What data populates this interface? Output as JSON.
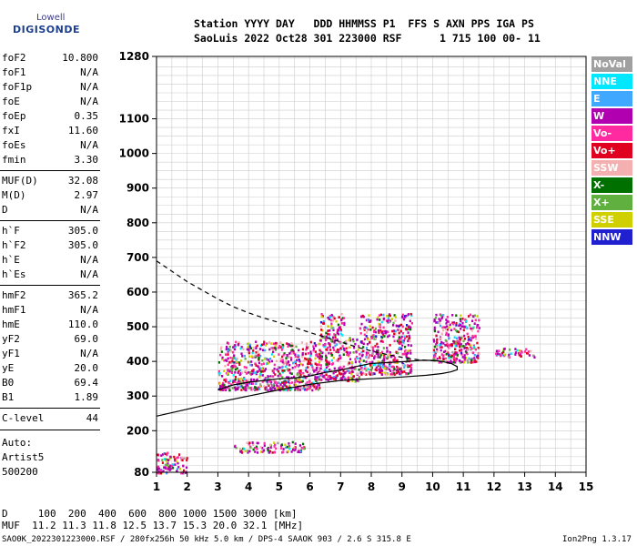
{
  "logo": {
    "line1": "Lowell",
    "line2": "DIGISONDE"
  },
  "header": {
    "line1": "Station YYYY DAY   DDD HHMMSS P1  FFS S AXN PPS IGA PS",
    "line2": "SaoLuis 2022 Oct28 301 223000 RSF      1 715 100 00- 11"
  },
  "params": [
    {
      "name": "foF2",
      "value": "10.800"
    },
    {
      "name": "foF1",
      "value": "N/A"
    },
    {
      "name": "foF1p",
      "value": "N/A"
    },
    {
      "name": "foE",
      "value": "N/A"
    },
    {
      "name": "foEp",
      "value": "0.35"
    },
    {
      "name": "fxI",
      "value": "11.60"
    },
    {
      "name": "foEs",
      "value": "N/A"
    },
    {
      "name": "fmin",
      "value": "3.30"
    },
    {
      "name": "MUF(D)",
      "value": "32.08"
    },
    {
      "name": "M(D)",
      "value": "2.97"
    },
    {
      "name": "D",
      "value": "N/A"
    },
    {
      "name": "h`F",
      "value": "305.0"
    },
    {
      "name": "h`F2",
      "value": "305.0"
    },
    {
      "name": "h`E",
      "value": "N/A"
    },
    {
      "name": "h`Es",
      "value": "N/A"
    },
    {
      "name": "hmF2",
      "value": "365.2"
    },
    {
      "name": "hmF1",
      "value": "N/A"
    },
    {
      "name": "hmE",
      "value": "110.0"
    },
    {
      "name": "yF2",
      "value": "69.0"
    },
    {
      "name": "yF1",
      "value": "N/A"
    },
    {
      "name": "yE",
      "value": "20.0"
    },
    {
      "name": "B0",
      "value": "69.4"
    },
    {
      "name": "B1",
      "value": "1.89"
    },
    {
      "name": "C-level",
      "value": "44"
    }
  ],
  "autoscale": {
    "label": "Auto:",
    "program": "Artist5",
    "version": "500200"
  },
  "legend": [
    {
      "label": "NoVal",
      "color": "#a0a0a0"
    },
    {
      "label": "NNE",
      "color": "#00e8ff"
    },
    {
      "label": "E",
      "color": "#40a8ff"
    },
    {
      "label": "W",
      "color": "#b000b0"
    },
    {
      "label": "Vo-",
      "color": "#ff2aa0"
    },
    {
      "label": "Vo+",
      "color": "#e00020"
    },
    {
      "label": "SSW",
      "color": "#f4b0b0"
    },
    {
      "label": "X-",
      "color": "#007000"
    },
    {
      "label": "X+",
      "color": "#60b040"
    },
    {
      "label": "SSE",
      "color": "#d0d000"
    },
    {
      "label": "NNW",
      "color": "#2020d0"
    }
  ],
  "footer": {
    "d_row": "D     100  200  400  600  800 1000 1500 3000 [km]",
    "muf_row": "MUF  11.2 11.3 11.8 12.5 13.7 15.3 20.0 32.1 [MHz]",
    "file_info": "SAO0K_2022301223000.RSF / 280fx256h 50 kHz 5.0 km / DPS-4 SAAOK 903 / 2.6 S 315.8 E",
    "version": "Ion2Png 1.3.17"
  },
  "chart_data": {
    "type": "scatter",
    "xlabel": "",
    "ylabel": "",
    "xlim": [
      1,
      15
    ],
    "ylim": [
      80,
      1280
    ],
    "x_ticks": [
      1,
      2,
      3,
      4,
      5,
      6,
      7,
      8,
      9,
      10,
      11,
      12,
      13,
      14,
      15
    ],
    "y_ticks": [
      80,
      200,
      300,
      400,
      500,
      600,
      700,
      800,
      900,
      1000,
      1100,
      1280
    ],
    "grid": true,
    "legend_position": "right",
    "traces": [
      {
        "style": "solid",
        "x": [
          1.0,
          2.0,
          3.0,
          4.0,
          5.0,
          6.0,
          7.0,
          8.0,
          9.0,
          9.8,
          10.3,
          10.6,
          10.8,
          10.8,
          10.6,
          10.3,
          10.0,
          9.6,
          9.2,
          8.8,
          8.4,
          8.0,
          7.5,
          7.0,
          6.5,
          6.0,
          5.5,
          5.0,
          4.5,
          4.0,
          3.5,
          3.0
        ],
        "y": [
          242,
          262,
          282,
          300,
          318,
          334,
          345,
          350,
          355,
          360,
          365,
          370,
          376,
          385,
          394,
          400,
          403,
          403,
          400,
          398,
          396,
          394,
          385,
          375,
          368,
          358,
          352,
          350,
          345,
          340,
          332,
          318
        ]
      },
      {
        "style": "dashed",
        "x": [
          1.0,
          1.5,
          2.0,
          2.5,
          3.0,
          3.5,
          4.0,
          4.5,
          5.0,
          5.5,
          6.0,
          6.5,
          7.0,
          7.5,
          8.0,
          8.5,
          9.0,
          9.5,
          10.0,
          10.3
        ],
        "y": [
          690,
          660,
          630,
          605,
          580,
          558,
          540,
          525,
          512,
          498,
          483,
          470,
          456,
          442,
          430,
          420,
          412,
          405,
          402,
          400
        ]
      }
    ],
    "echo_regions": [
      {
        "x_range": [
          3.0,
          6.3
        ],
        "y_range": [
          320,
          460
        ]
      },
      {
        "x_range": [
          6.3,
          7.1
        ],
        "y_range": [
          350,
          540
        ]
      },
      {
        "x_range": [
          7.1,
          7.6
        ],
        "y_range": [
          345,
          470
        ]
      },
      {
        "x_range": [
          7.6,
          9.3
        ],
        "y_range": [
          365,
          540
        ]
      },
      {
        "x_range": [
          10.0,
          11.5
        ],
        "y_range": [
          400,
          540
        ]
      },
      {
        "x_range": [
          12.0,
          13.3
        ],
        "y_range": [
          415,
          440
        ]
      },
      {
        "x_range": [
          3.5,
          5.8
        ],
        "y_range": [
          140,
          170
        ]
      },
      {
        "x_range": [
          1.0,
          2.0
        ],
        "y_range": [
          80,
          140
        ]
      }
    ]
  }
}
